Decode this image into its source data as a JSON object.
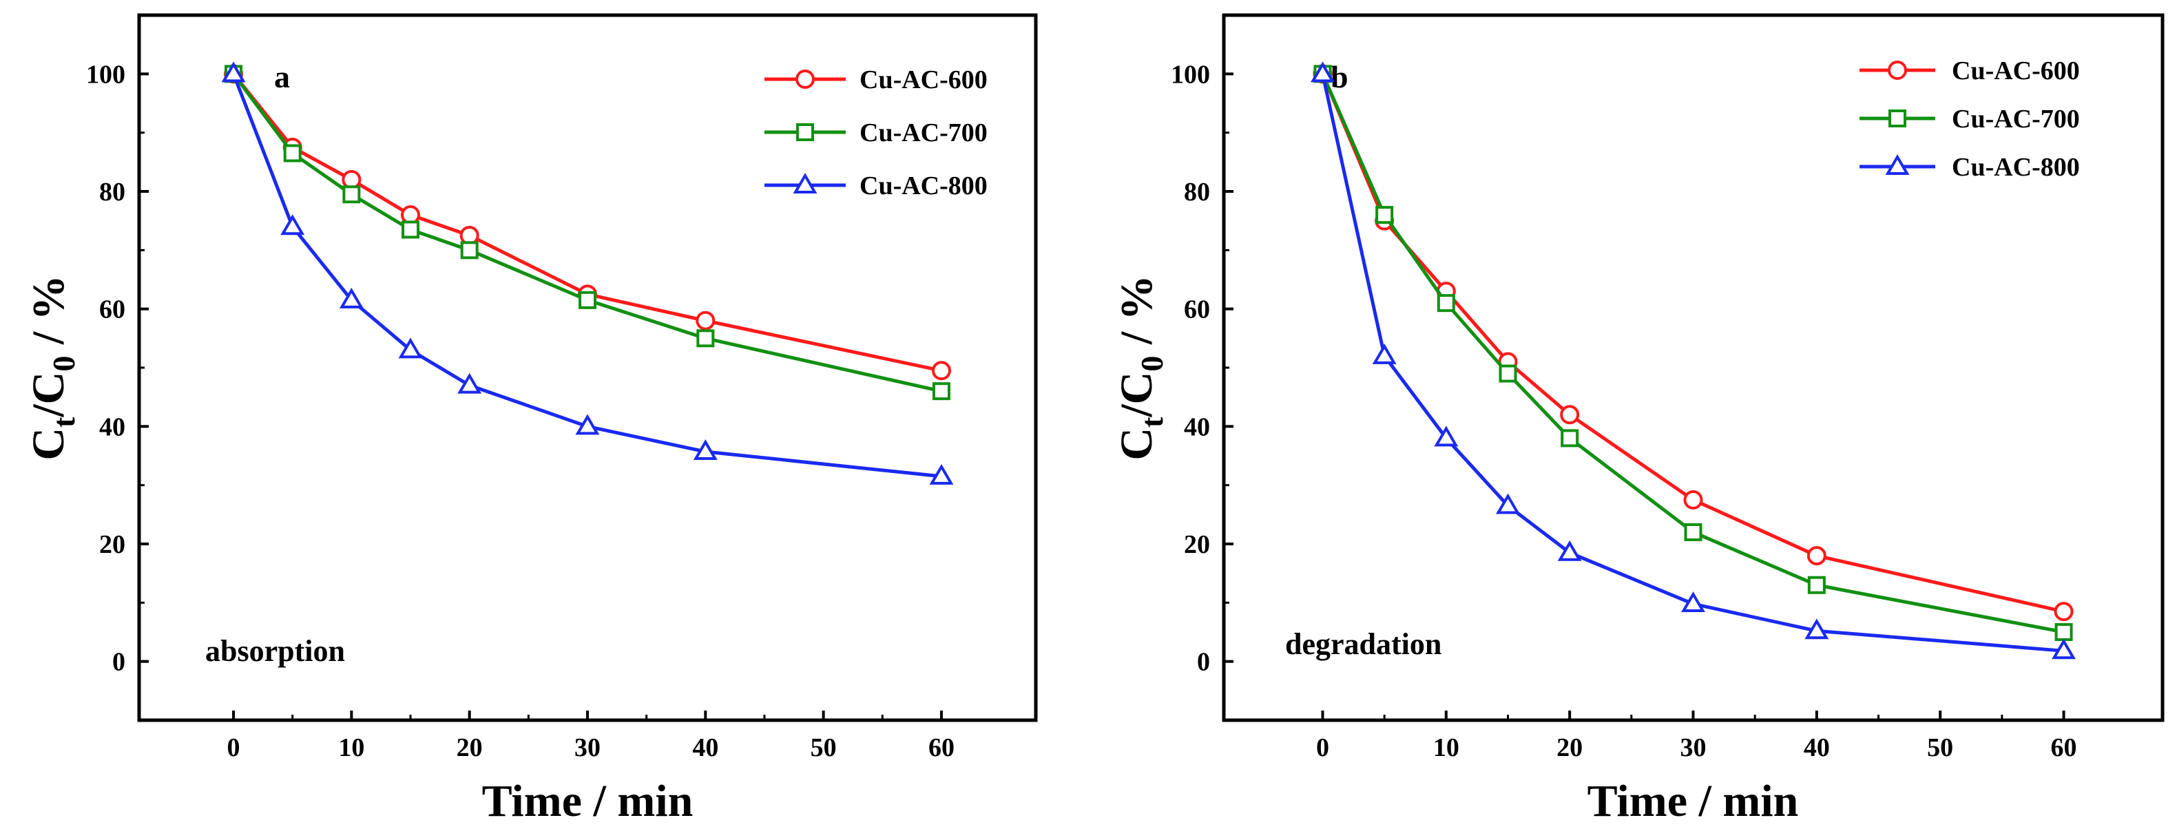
{
  "chart_data": [
    {
      "type": "line",
      "panel_label": "a",
      "annotation": "absorption",
      "xlabel": "Time / min",
      "ylabel": {
        "main": "C",
        "sub1": "t",
        "slash": "/C",
        "sub2": "0",
        "tail": " / %"
      },
      "xlim": [
        -8,
        68
      ],
      "ylim": [
        -10,
        110
      ],
      "xticks": [
        0,
        10,
        20,
        30,
        40,
        50,
        60
      ],
      "yticks": [
        0,
        20,
        40,
        60,
        80,
        100
      ],
      "legend_position": "top-right",
      "series": [
        {
          "name": "Cu-AC-600",
          "color": "#ff1a1a",
          "marker": "circle",
          "x": [
            0,
            5,
            10,
            15,
            20,
            30,
            40,
            60
          ],
          "y": [
            100,
            87.5,
            82,
            76,
            72.5,
            62.5,
            58,
            49.5
          ]
        },
        {
          "name": "Cu-AC-700",
          "color": "#129012",
          "marker": "square",
          "x": [
            0,
            5,
            10,
            15,
            20,
            30,
            40,
            60
          ],
          "y": [
            100,
            86.5,
            79.5,
            73.5,
            70,
            61.5,
            55,
            46
          ]
        },
        {
          "name": "Cu-AC-800",
          "color": "#1a2af0",
          "marker": "triangle",
          "x": [
            0,
            5,
            10,
            15,
            20,
            30,
            40,
            60
          ],
          "y": [
            100,
            74,
            61.5,
            53,
            47,
            40,
            35.7,
            31.5
          ]
        }
      ]
    },
    {
      "type": "line",
      "panel_label": "b",
      "annotation": "degradation",
      "xlabel": "Time / min",
      "ylabel": {
        "main": "C",
        "sub1": "t",
        "slash": "/C",
        "sub2": "0",
        "tail": " / %"
      },
      "xlim": [
        -8,
        68
      ],
      "ylim": [
        -10,
        110
      ],
      "xticks": [
        0,
        10,
        20,
        30,
        40,
        50,
        60
      ],
      "yticks": [
        0,
        20,
        40,
        60,
        80,
        100
      ],
      "legend_position": "top-right",
      "series": [
        {
          "name": "Cu-AC-600",
          "color": "#ff1a1a",
          "marker": "circle",
          "x": [
            0,
            5,
            10,
            15,
            20,
            30,
            40,
            60
          ],
          "y": [
            100,
            75,
            63,
            51,
            42,
            27.5,
            18,
            8.5
          ]
        },
        {
          "name": "Cu-AC-700",
          "color": "#129012",
          "marker": "square",
          "x": [
            0,
            5,
            10,
            15,
            20,
            30,
            40,
            60
          ],
          "y": [
            100,
            76,
            61,
            49,
            38,
            22,
            13,
            5
          ]
        },
        {
          "name": "Cu-AC-800",
          "color": "#1a2af0",
          "marker": "triangle",
          "x": [
            0,
            5,
            10,
            15,
            20,
            30,
            40,
            60
          ],
          "y": [
            100,
            52,
            38,
            26.5,
            18.5,
            9.8,
            5.2,
            1.8
          ]
        }
      ]
    }
  ]
}
